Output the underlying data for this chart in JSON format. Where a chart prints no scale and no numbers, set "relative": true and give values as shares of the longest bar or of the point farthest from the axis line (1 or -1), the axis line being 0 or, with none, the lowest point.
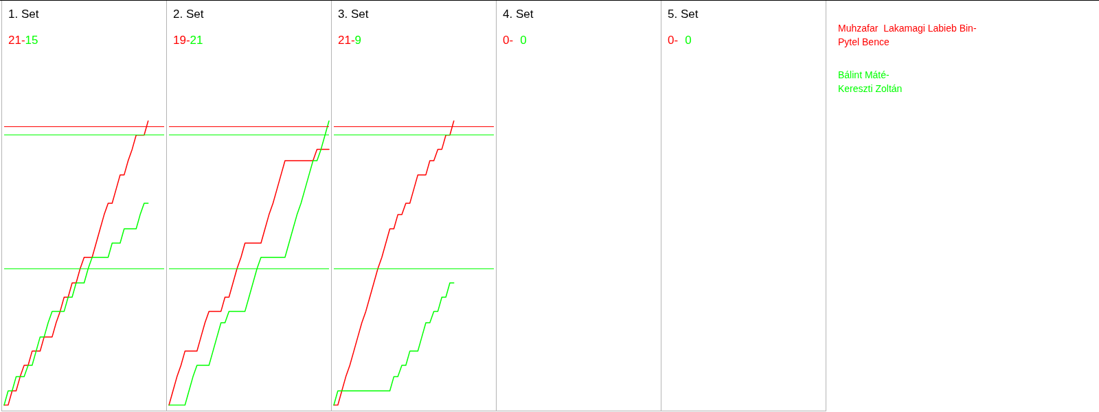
{
  "chart_data": [
    {
      "type": "line",
      "title": "1. Set",
      "annotations": [
        "21-",
        "15"
      ],
      "relative": true,
      "line_style": "solid",
      "legend": "right",
      "categories": [
        null,
        null,
        null,
        null,
        null,
        null,
        null,
        null,
        null,
        null,
        null,
        null,
        null,
        null,
        null,
        null,
        null,
        null,
        null,
        null,
        null,
        null,
        null,
        null,
        null,
        null,
        null,
        null,
        null,
        null,
        null,
        null,
        null,
        null,
        null,
        null,
        null,
        null,
        null,
        null,
        null
      ],
      "series": [
        {
          "name": "Muhzafar  Lakamagi Labieb Bin-Pytel Bence",
          "color": "#ff0000",
          "values": [
            0,
            0,
            0.05,
            0.05,
            0.1,
            0.14,
            0.14,
            0.19,
            0.19,
            0.19,
            0.24,
            0.24,
            0.24,
            0.29,
            0.33,
            0.38,
            0.38,
            0.43,
            0.43,
            0.48,
            0.52,
            0.52,
            0.52,
            0.57,
            0.62,
            0.67,
            0.71,
            0.71,
            0.76,
            0.81,
            0.81,
            0.86,
            0.9,
            0.95,
            0.95,
            0.95,
            1,
            null,
            null,
            null,
            null
          ]
        },
        {
          "name": "Bálint Máté-Kereszti Zoltán",
          "color": "#00ff00",
          "values": [
            0,
            0.05,
            0.05,
            0.1,
            0.1,
            0.1,
            0.14,
            0.14,
            0.19,
            0.24,
            0.24,
            0.29,
            0.33,
            0.33,
            0.33,
            0.33,
            0.38,
            0.38,
            0.43,
            0.43,
            0.43,
            0.48,
            0.52,
            0.52,
            0.52,
            0.52,
            0.52,
            0.57,
            0.57,
            0.57,
            0.62,
            0.62,
            0.62,
            0.62,
            0.67,
            0.71,
            0.71,
            null,
            null,
            null,
            null
          ]
        }
      ],
      "ref_lines": [
        {
          "axis": "y",
          "value": 0.98,
          "color": "#ff0000"
        },
        {
          "axis": "y",
          "value": 0.95,
          "color": "#00ff00"
        },
        {
          "axis": "y",
          "value": 0.48,
          "color": "#00ff00"
        }
      ]
    },
    {
      "type": "line",
      "title": "2. Set",
      "annotations": [
        "19-",
        "21"
      ],
      "relative": true,
      "line_style": "solid",
      "categories": [
        null,
        null,
        null,
        null,
        null,
        null,
        null,
        null,
        null,
        null,
        null,
        null,
        null,
        null,
        null,
        null,
        null,
        null,
        null,
        null,
        null,
        null,
        null,
        null,
        null,
        null,
        null,
        null,
        null,
        null,
        null,
        null,
        null,
        null,
        null,
        null,
        null,
        null,
        null,
        null,
        null
      ],
      "series": [
        {
          "color": "#ff0000",
          "values": [
            0,
            0.05,
            0.1,
            0.14,
            0.19,
            0.19,
            0.19,
            0.19,
            0.24,
            0.29,
            0.33,
            0.33,
            0.33,
            0.33,
            0.38,
            0.38,
            0.43,
            0.48,
            0.52,
            0.57,
            0.57,
            0.57,
            0.57,
            0.57,
            0.62,
            0.67,
            0.71,
            0.76,
            0.81,
            0.86,
            0.86,
            0.86,
            0.86,
            0.86,
            0.86,
            0.86,
            0.86,
            0.9,
            0.9,
            0.9,
            0.9
          ]
        },
        {
          "color": "#00ff00",
          "values": [
            0,
            0,
            0,
            0,
            0,
            0.05,
            0.1,
            0.14,
            0.14,
            0.14,
            0.14,
            0.19,
            0.24,
            0.29,
            0.29,
            0.33,
            0.33,
            0.33,
            0.33,
            0.33,
            0.38,
            0.43,
            0.48,
            0.52,
            0.52,
            0.52,
            0.52,
            0.52,
            0.52,
            0.52,
            0.57,
            0.62,
            0.67,
            0.71,
            0.76,
            0.81,
            0.86,
            0.86,
            0.9,
            0.95,
            1
          ]
        }
      ],
      "ref_lines": [
        {
          "axis": "y",
          "value": 0.98,
          "color": "#ff0000"
        },
        {
          "axis": "y",
          "value": 0.95,
          "color": "#00ff00"
        },
        {
          "axis": "y",
          "value": 0.48,
          "color": "#00ff00"
        }
      ]
    },
    {
      "type": "line",
      "title": "3. Set",
      "annotations": [
        "21-",
        "9"
      ],
      "relative": true,
      "line_style": "solid",
      "categories": [
        null,
        null,
        null,
        null,
        null,
        null,
        null,
        null,
        null,
        null,
        null,
        null,
        null,
        null,
        null,
        null,
        null,
        null,
        null,
        null,
        null,
        null,
        null,
        null,
        null,
        null,
        null,
        null,
        null,
        null,
        null,
        null,
        null,
        null,
        null,
        null,
        null,
        null,
        null,
        null,
        null
      ],
      "series": [
        {
          "color": "#ff0000",
          "values": [
            0,
            0,
            0.05,
            0.1,
            0.14,
            0.19,
            0.24,
            0.29,
            0.33,
            0.38,
            0.43,
            0.48,
            0.52,
            0.57,
            0.62,
            0.62,
            0.67,
            0.67,
            0.71,
            0.71,
            0.76,
            0.81,
            0.81,
            0.81,
            0.86,
            0.86,
            0.9,
            0.9,
            0.95,
            0.95,
            1,
            null,
            null,
            null,
            null,
            null,
            null,
            null,
            null,
            null,
            null
          ]
        },
        {
          "color": "#00ff00",
          "values": [
            0,
            0.05,
            0.05,
            0.05,
            0.05,
            0.05,
            0.05,
            0.05,
            0.05,
            0.05,
            0.05,
            0.05,
            0.05,
            0.05,
            0.05,
            0.1,
            0.1,
            0.14,
            0.14,
            0.19,
            0.19,
            0.19,
            0.24,
            0.29,
            0.29,
            0.33,
            0.33,
            0.38,
            0.38,
            0.43,
            0.43,
            null,
            null,
            null,
            null,
            null,
            null,
            null,
            null,
            null,
            null
          ]
        }
      ],
      "ref_lines": [
        {
          "axis": "y",
          "value": 0.98,
          "color": "#ff0000"
        },
        {
          "axis": "y",
          "value": 0.95,
          "color": "#00ff00"
        },
        {
          "axis": "y",
          "value": 0.48,
          "color": "#00ff00"
        }
      ]
    },
    {
      "type": "other",
      "title": "4. Set",
      "annotations": [
        "0-",
        "0"
      ],
      "colors": [
        "#ff0000",
        "#00ff00"
      ]
    },
    {
      "type": "other",
      "title": "5. Set",
      "annotations": [
        "0-",
        "0"
      ],
      "colors": [
        "#ff0000",
        "#00ff00"
      ]
    }
  ]
}
